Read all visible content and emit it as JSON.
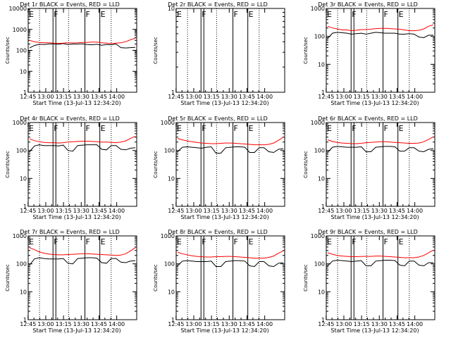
{
  "chart_data": [
    {
      "type": "line",
      "title": "Det 1r BLACK = Events, RED = LLD",
      "xlabel": "Start Time (13-Jul-13 12:34:20)",
      "ylabel": "Counts/sec",
      "yscale": "log",
      "ylim": [
        1,
        10000
      ],
      "yticks": [
        "1",
        "10",
        "100",
        "1000",
        "10000"
      ],
      "xticks": [
        "12:45",
        "13:00",
        "13:15",
        "13:30",
        "13:45",
        "14:00"
      ],
      "flags": [
        "E",
        "F",
        "F",
        "E"
      ],
      "series": [
        {
          "color": "#000000",
          "values": [
            130,
            170,
            195,
            190,
            200,
            205,
            195,
            210,
            190,
            200,
            200,
            205,
            190,
            185,
            195,
            175,
            190,
            185,
            200,
            135,
            130,
            135,
            140
          ]
        },
        {
          "color": "#ff0000",
          "values": [
            300,
            260,
            240,
            230,
            230,
            220,
            215,
            220,
            230,
            225,
            230,
            240,
            240,
            250,
            250,
            230,
            220,
            210,
            220,
            230,
            260,
            320,
            380
          ]
        }
      ]
    },
    {
      "type": "line",
      "title": "Det 2r BLACK = Events, RED = LLD",
      "xlabel": "Start Time (13-Jul-13 12:34:20)",
      "ylabel": "Counts/sec",
      "yscale": "log",
      "ylim": [
        1,
        10
      ],
      "yticks": [
        "1",
        "10"
      ],
      "xticks": [
        "12:45",
        "13:00",
        "13:15",
        "13:30",
        "13:45",
        "14:00"
      ],
      "flags": [
        "E",
        "F",
        "F",
        "E"
      ],
      "series": []
    },
    {
      "type": "line",
      "title": "Det 3r BLACK = Events, RED = LLD",
      "xlabel": "Start Time (13-Jul-13 12:34:20)",
      "ylabel": "Counts/sec",
      "yscale": "log",
      "ylim": [
        1,
        1000
      ],
      "yticks": [
        "1",
        "10",
        "100",
        "1000"
      ],
      "xticks": [
        "12:45",
        "13:00",
        "13:15",
        "13:30",
        "13:45",
        "14:00"
      ],
      "flags": [
        "E",
        "F",
        "F",
        "E"
      ],
      "series": [
        {
          "color": "#000000",
          "values": [
            85,
            130,
            140,
            135,
            130,
            120,
            125,
            130,
            120,
            130,
            140,
            135,
            130,
            130,
            130,
            120,
            120,
            125,
            120,
            95,
            90,
            110,
            110
          ]
        },
        {
          "color": "#ff0000",
          "values": [
            230,
            200,
            185,
            170,
            170,
            160,
            165,
            175,
            175,
            180,
            190,
            195,
            195,
            190,
            185,
            180,
            170,
            160,
            160,
            165,
            185,
            230,
            260
          ]
        }
      ]
    },
    {
      "type": "line",
      "title": "Det 4r BLACK = Events, RED = LLD",
      "xlabel": "Start Time (13-Jul-13 12:34:20)",
      "ylabel": "Counts/sec",
      "yscale": "log",
      "ylim": [
        1,
        1000
      ],
      "yticks": [
        "1",
        "10",
        "100",
        "1000"
      ],
      "xticks": [
        "12:45",
        "13:00",
        "13:15",
        "13:30",
        "13:45",
        "14:00"
      ],
      "flags": [
        "E",
        "F",
        "F",
        "E"
      ],
      "series": [
        {
          "color": "#000000",
          "values": [
            90,
            145,
            160,
            150,
            150,
            150,
            145,
            155,
            100,
            95,
            150,
            155,
            160,
            160,
            160,
            110,
            105,
            150,
            150,
            110,
            105,
            120,
            125
          ]
        },
        {
          "color": "#ff0000",
          "values": [
            260,
            225,
            205,
            195,
            190,
            190,
            185,
            190,
            200,
            205,
            210,
            215,
            215,
            210,
            205,
            200,
            200,
            195,
            190,
            200,
            220,
            270,
            320
          ]
        }
      ]
    },
    {
      "type": "line",
      "title": "Det 5r BLACK = Events, RED = LLD",
      "xlabel": "Start Time (13-Jul-13 12:34:20)",
      "ylabel": "Counts/sec",
      "yscale": "log",
      "ylim": [
        1,
        1000
      ],
      "yticks": [
        "1",
        "10",
        "100",
        "1000"
      ],
      "xticks": [
        "12:45",
        "13:00",
        "13:15",
        "13:30",
        "13:45",
        "14:00"
      ],
      "flags": [
        "E",
        "F",
        "F",
        "E"
      ],
      "series": [
        {
          "color": "#000000",
          "values": [
            90,
            130,
            135,
            130,
            125,
            120,
            130,
            135,
            80,
            80,
            125,
            130,
            135,
            135,
            130,
            85,
            85,
            125,
            125,
            90,
            85,
            110,
            115
          ]
        },
        {
          "color": "#ff0000",
          "values": [
            270,
            240,
            220,
            205,
            195,
            185,
            180,
            175,
            175,
            180,
            185,
            185,
            180,
            175,
            170,
            165,
            160,
            160,
            160,
            165,
            185,
            230,
            300
          ]
        }
      ]
    },
    {
      "type": "line",
      "title": "Det 6r BLACK = Events, RED = LLD",
      "xlabel": "Start Time (13-Jul-13 12:34:20)",
      "ylabel": "Counts/sec",
      "yscale": "log",
      "ylim": [
        1,
        1000
      ],
      "yticks": [
        "1",
        "10",
        "100",
        "1000"
      ],
      "xticks": [
        "12:45",
        "13:00",
        "13:15",
        "13:30",
        "13:45",
        "14:00"
      ],
      "flags": [
        "E",
        "F",
        "F",
        "E"
      ],
      "series": [
        {
          "color": "#000000",
          "values": [
            85,
            130,
            140,
            135,
            130,
            130,
            130,
            135,
            90,
            90,
            130,
            135,
            140,
            140,
            135,
            95,
            95,
            125,
            125,
            95,
            90,
            110,
            115
          ]
        },
        {
          "color": "#ff0000",
          "values": [
            240,
            210,
            195,
            185,
            180,
            175,
            175,
            180,
            190,
            195,
            200,
            205,
            205,
            200,
            195,
            190,
            185,
            180,
            180,
            185,
            205,
            250,
            310
          ]
        }
      ]
    },
    {
      "type": "line",
      "title": "Det 7r BLACK = Events, RED = LLD",
      "xlabel": "Start Time (13-Jul-13 12:34:20)",
      "ylabel": "Counts/sec",
      "yscale": "log",
      "ylim": [
        1,
        1000
      ],
      "yticks": [
        "1",
        "10",
        "100",
        "1000"
      ],
      "xticks": [
        "12:45",
        "13:00",
        "13:15",
        "13:30",
        "13:45",
        "14:00"
      ],
      "flags": [
        "E",
        "F",
        "F",
        "E"
      ],
      "series": [
        {
          "color": "#000000",
          "values": [
            90,
            150,
            165,
            155,
            150,
            150,
            150,
            155,
            105,
            100,
            155,
            160,
            165,
            165,
            160,
            110,
            105,
            155,
            155,
            115,
            110,
            125,
            130
          ]
        },
        {
          "color": "#ff0000",
          "values": [
            380,
            320,
            270,
            240,
            225,
            215,
            210,
            210,
            215,
            220,
            225,
            230,
            230,
            225,
            220,
            215,
            210,
            205,
            200,
            205,
            230,
            290,
            380
          ]
        }
      ]
    },
    {
      "type": "line",
      "title": "Det 8r BLACK = Events, RED = LLD",
      "xlabel": "Start Time (13-Jul-13 12:34:20)",
      "ylabel": "Counts/sec",
      "yscale": "log",
      "ylim": [
        1,
        1000
      ],
      "yticks": [
        "1",
        "10",
        "100",
        "1000"
      ],
      "xticks": [
        "12:45",
        "13:00",
        "13:15",
        "13:30",
        "13:45",
        "14:00"
      ],
      "flags": [
        "E",
        "F",
        "F",
        "E"
      ],
      "series": [
        {
          "color": "#000000",
          "values": [
            85,
            125,
            130,
            125,
            120,
            120,
            120,
            125,
            80,
            80,
            120,
            125,
            130,
            130,
            125,
            85,
            80,
            120,
            120,
            85,
            80,
            105,
            110
          ]
        },
        {
          "color": "#ff0000",
          "values": [
            260,
            230,
            210,
            195,
            185,
            180,
            175,
            175,
            180,
            180,
            185,
            185,
            180,
            175,
            170,
            165,
            160,
            160,
            160,
            170,
            190,
            240,
            290
          ]
        }
      ]
    },
    {
      "type": "line",
      "title": "Det 9r BLACK = Events, RED = LLD",
      "xlabel": "Start Time (13-Jul-13 12:34:20)",
      "ylabel": "Counts/sec",
      "yscale": "log",
      "ylim": [
        1,
        1000
      ],
      "yticks": [
        "1",
        "10",
        "100",
        "1000"
      ],
      "xticks": [
        "12:45",
        "13:00",
        "13:15",
        "13:30",
        "13:45",
        "14:00"
      ],
      "flags": [
        "E",
        "F",
        "F",
        "E"
      ],
      "series": [
        {
          "color": "#000000",
          "values": [
            85,
            125,
            135,
            130,
            125,
            120,
            125,
            130,
            85,
            85,
            125,
            130,
            135,
            135,
            130,
            90,
            85,
            125,
            125,
            90,
            85,
            110,
            110
          ]
        },
        {
          "color": "#ff0000",
          "values": [
            250,
            220,
            200,
            190,
            185,
            180,
            180,
            185,
            185,
            185,
            190,
            190,
            185,
            180,
            175,
            170,
            165,
            165,
            165,
            175,
            200,
            250,
            310
          ]
        }
      ]
    }
  ]
}
